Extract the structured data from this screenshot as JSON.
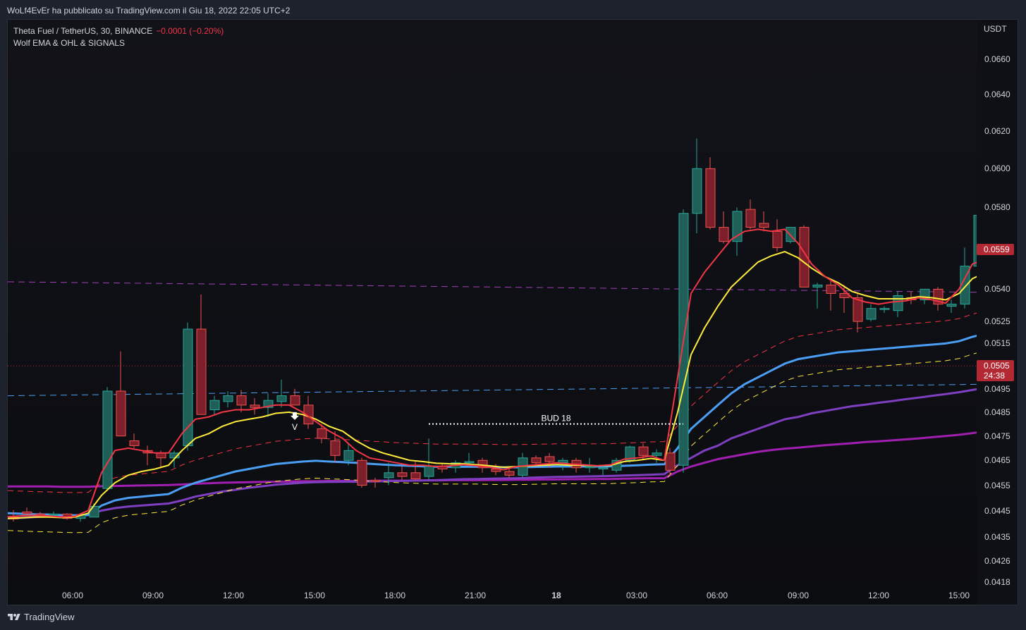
{
  "caption": "WoLf4EvEr ha pubblicato su TradingView.com il Giu 18, 2022 22:05 UTC+2",
  "legend": {
    "symbol": "Theta Fuel / TetherUS, 30, BINANCE",
    "change": "−0.0001 (−0.20%)",
    "indicator": "Wolf EMA & OHL & SIGNALS"
  },
  "axis": {
    "currency": "USDT",
    "price_ticks": [
      "0.0660",
      "0.0640",
      "0.0620",
      "0.0600",
      "0.0580",
      "0.0540",
      "0.0525",
      "0.0515",
      "0.0495",
      "0.0485",
      "0.0475",
      "0.0465",
      "0.0455",
      "0.0445",
      "0.0435",
      "0.0426",
      "0.0418"
    ],
    "last_price_tag": "0.0559",
    "current_price_tag": "0.0505",
    "countdown": "24:38",
    "time_ticks": [
      "06:00",
      "09:00",
      "12:00",
      "15:00",
      "18:00",
      "21:00",
      "18",
      "03:00",
      "06:00",
      "09:00",
      "12:00",
      "15:00"
    ]
  },
  "annotations": {
    "bud_label": "BUD 18",
    "sell_signal": "V"
  },
  "footer": {
    "brand": "TradingView"
  },
  "colors": {
    "bull": "#26a69a",
    "bear": "#ef5350",
    "ema_red": "#f23645",
    "ema_yellow": "#ffeb3b",
    "ema_blue": "#4a9ff5",
    "ema_purple": "#7e3fc0",
    "ema_magenta": "#a11fb0"
  },
  "chart_data": {
    "type": "candlestick",
    "title": "Theta Fuel / TetherUS, 30, BINANCE",
    "y_scale": "log",
    "ylim": [
      0.0415,
      0.0675
    ],
    "y_ticks": [
      0.066,
      0.064,
      0.062,
      0.06,
      0.058,
      0.054,
      0.0525,
      0.0515,
      0.0495,
      0.0485,
      0.0475,
      0.0465,
      0.0455,
      0.0445,
      0.0435,
      0.0426,
      0.0418
    ],
    "x_labels": [
      "06:00",
      "09:00",
      "12:00",
      "15:00",
      "18:00",
      "21:00",
      "18",
      "03:00",
      "06:00",
      "09:00",
      "12:00",
      "15:00"
    ],
    "candles": [
      [
        0.04425,
        0.04452,
        0.04408,
        0.04418
      ],
      [
        0.04445,
        0.04462,
        0.0443,
        0.04438
      ],
      [
        0.04437,
        0.04445,
        0.0443,
        0.04435
      ],
      [
        0.04435,
        0.04447,
        0.04424,
        0.04437
      ],
      [
        0.04437,
        0.0444,
        0.04415,
        0.0442
      ],
      [
        0.0442,
        0.04436,
        0.04407,
        0.04433
      ],
      [
        0.04425,
        0.04478,
        0.04425,
        0.04467
      ],
      [
        0.04537,
        0.04958,
        0.0453,
        0.0494
      ],
      [
        0.0494,
        0.05115,
        0.0475,
        0.0475
      ],
      [
        0.0473,
        0.0476,
        0.047,
        0.0471
      ],
      [
        0.0469,
        0.0471,
        0.0463,
        0.0468
      ],
      [
        0.0468,
        0.0469,
        0.0462,
        0.0466
      ],
      [
        0.0466,
        0.0469,
        0.0462,
        0.0468
      ],
      [
        0.0471,
        0.05245,
        0.0469,
        0.05215
      ],
      [
        0.05215,
        0.05375,
        0.0484,
        0.0484
      ],
      [
        0.0486,
        0.0492,
        0.0484,
        0.049
      ],
      [
        0.04895,
        0.0494,
        0.0487,
        0.0492
      ],
      [
        0.0492,
        0.04945,
        0.0485,
        0.0488
      ],
      [
        0.0488,
        0.0491,
        0.0484,
        0.0487
      ],
      [
        0.0487,
        0.0493,
        0.0483,
        0.049
      ],
      [
        0.04895,
        0.0499,
        0.0487,
        0.0492
      ],
      [
        0.0492,
        0.0495,
        0.0488,
        0.0488
      ],
      [
        0.0488,
        0.0492,
        0.0478,
        0.048
      ],
      [
        0.0478,
        0.048,
        0.0472,
        0.0474
      ],
      [
        0.0473,
        0.0477,
        0.0464,
        0.0467
      ],
      [
        0.0465,
        0.0472,
        0.0463,
        0.0469
      ],
      [
        0.0465,
        0.0466,
        0.0454,
        0.0455
      ],
      [
        0.0457,
        0.0458,
        0.0454,
        0.04565
      ],
      [
        0.0458,
        0.0464,
        0.0455,
        0.046
      ],
      [
        0.046,
        0.04625,
        0.0457,
        0.04585
      ],
      [
        0.046,
        0.0465,
        0.0457,
        0.04575
      ],
      [
        0.04585,
        0.0474,
        0.0457,
        0.04625
      ],
      [
        0.04625,
        0.0464,
        0.046,
        0.04615
      ],
      [
        0.0462,
        0.0465,
        0.046,
        0.0464
      ],
      [
        0.0464,
        0.0468,
        0.0462,
        0.04645
      ],
      [
        0.0465,
        0.0466,
        0.046,
        0.0462
      ],
      [
        0.04615,
        0.04635,
        0.0459,
        0.04605
      ],
      [
        0.04605,
        0.0462,
        0.0458,
        0.0459
      ],
      [
        0.0459,
        0.0468,
        0.0458,
        0.0466
      ],
      [
        0.0466,
        0.0467,
        0.0463,
        0.0464
      ],
      [
        0.04665,
        0.0468,
        0.0462,
        0.04645
      ],
      [
        0.0464,
        0.0466,
        0.0461,
        0.0465
      ],
      [
        0.0465,
        0.0466,
        0.046,
        0.0462
      ],
      [
        0.0462,
        0.0466,
        0.046,
        0.04625
      ],
      [
        0.04615,
        0.0463,
        0.0459,
        0.0462
      ],
      [
        0.0461,
        0.0466,
        0.046,
        0.0465
      ],
      [
        0.0465,
        0.0471,
        0.0464,
        0.04705
      ],
      [
        0.04705,
        0.0472,
        0.0465,
        0.0467
      ],
      [
        0.0467,
        0.04695,
        0.0464,
        0.0468
      ],
      [
        0.0468,
        0.047,
        0.0459,
        0.0461
      ],
      [
        0.0463,
        0.0579,
        0.046,
        0.0577
      ],
      [
        0.0577,
        0.0616,
        0.0567,
        0.06
      ],
      [
        0.06,
        0.0606,
        0.0569,
        0.057
      ],
      [
        0.057,
        0.0578,
        0.0562,
        0.0563
      ],
      [
        0.0563,
        0.058,
        0.0556,
        0.0578
      ],
      [
        0.0579,
        0.0584,
        0.0569,
        0.057
      ],
      [
        0.0572,
        0.0578,
        0.0568,
        0.057
      ],
      [
        0.0568,
        0.0574,
        0.0558,
        0.056
      ],
      [
        0.0563,
        0.057,
        0.0562,
        0.057
      ],
      [
        0.057,
        0.0571,
        0.0541,
        0.0541
      ],
      [
        0.0541,
        0.0543,
        0.0531,
        0.0542
      ],
      [
        0.0542,
        0.0544,
        0.053,
        0.0538
      ],
      [
        0.0538,
        0.0542,
        0.0529,
        0.0536
      ],
      [
        0.0536,
        0.0538,
        0.052,
        0.0525
      ],
      [
        0.0526,
        0.0533,
        0.0525,
        0.0531
      ],
      [
        0.0531,
        0.0532,
        0.0529,
        0.0531
      ],
      [
        0.053,
        0.0539,
        0.0527,
        0.0537
      ],
      [
        0.0536,
        0.0539,
        0.0533,
        0.0535
      ],
      [
        0.0535,
        0.054,
        0.0533,
        0.054
      ],
      [
        0.054,
        0.0541,
        0.053,
        0.0533
      ],
      [
        0.0532,
        0.0535,
        0.0529,
        0.0533
      ],
      [
        0.0533,
        0.056,
        0.0531,
        0.0551
      ],
      [
        0.0551,
        0.0579,
        0.0549,
        0.0576
      ],
      [
        0.0576,
        0.0591,
        0.055,
        0.0555
      ]
    ],
    "ema_fast": [
      0.04427,
      0.0443,
      0.04432,
      0.0443,
      0.04425,
      0.04428,
      0.0445,
      0.046,
      0.0469,
      0.047,
      0.0469,
      0.0468,
      0.0468,
      0.0476,
      0.0482,
      0.0483,
      0.0485,
      0.0486,
      0.0486,
      0.0487,
      0.0488,
      0.0488,
      0.0485,
      0.0481,
      0.0477,
      0.0474,
      0.0469,
      0.0466,
      0.0465,
      0.0464,
      0.0463,
      0.0463,
      0.04625,
      0.04628,
      0.04632,
      0.04628,
      0.04622,
      0.04612,
      0.04625,
      0.0463,
      0.04635,
      0.0464,
      0.04635,
      0.04632,
      0.04628,
      0.04632,
      0.04655,
      0.0466,
      0.04668,
      0.0465,
      0.05,
      0.0538,
      0.0548,
      0.0556,
      0.0564,
      0.0568,
      0.0569,
      0.0568,
      0.0569,
      0.0562,
      0.0552,
      0.0546,
      0.0542,
      0.0536,
      0.0534,
      0.0533,
      0.0534,
      0.05345,
      0.0536,
      0.0535,
      0.05335,
      0.054,
      0.0552,
      0.05545
    ],
    "ema_mid": [
      0.0442,
      0.04422,
      0.04425,
      0.04425,
      0.04423,
      0.04425,
      0.0444,
      0.0451,
      0.0456,
      0.0459,
      0.04605,
      0.04615,
      0.0463,
      0.0469,
      0.0474,
      0.0476,
      0.0479,
      0.0481,
      0.0482,
      0.0483,
      0.04845,
      0.0485,
      0.0484,
      0.0482,
      0.0479,
      0.0477,
      0.0473,
      0.047,
      0.0468,
      0.04665,
      0.0465,
      0.04645,
      0.04638,
      0.04636,
      0.04636,
      0.04632,
      0.04628,
      0.04622,
      0.04625,
      0.04628,
      0.0463,
      0.04633,
      0.0463,
      0.0463,
      0.04628,
      0.0463,
      0.04645,
      0.0465,
      0.04658,
      0.0465,
      0.0485,
      0.051,
      0.0522,
      0.0532,
      0.0541,
      0.0547,
      0.0553,
      0.0556,
      0.0558,
      0.0555,
      0.055,
      0.0546,
      0.0543,
      0.0539,
      0.0537,
      0.05355,
      0.05355,
      0.05355,
      0.05365,
      0.0536,
      0.0535,
      0.0538,
      0.0545,
      0.0548
    ],
    "ema_slow": [
      0.0444,
      0.04438,
      0.04436,
      0.04435,
      0.04433,
      0.04432,
      0.04433,
      0.0447,
      0.0449,
      0.045,
      0.04505,
      0.0451,
      0.04515,
      0.0454,
      0.0456,
      0.04575,
      0.0459,
      0.04605,
      0.04615,
      0.04625,
      0.04635,
      0.0464,
      0.04645,
      0.04648,
      0.04645,
      0.04643,
      0.0464,
      0.04636,
      0.04633,
      0.0463,
      0.04628,
      0.04626,
      0.04624,
      0.04624,
      0.04624,
      0.04624,
      0.04623,
      0.04622,
      0.04622,
      0.04623,
      0.04624,
      0.04625,
      0.04625,
      0.04625,
      0.04625,
      0.04626,
      0.04628,
      0.0463,
      0.04633,
      0.04634,
      0.047,
      0.0478,
      0.0483,
      0.0488,
      0.0493,
      0.0497,
      0.05,
      0.0503,
      0.0506,
      0.0508,
      0.0509,
      0.051,
      0.0511,
      0.05115,
      0.0512,
      0.05125,
      0.0513,
      0.05135,
      0.0514,
      0.05145,
      0.0515,
      0.0516,
      0.0518,
      0.05195
    ],
    "ema_long": [
      0.0442,
      0.04422,
      0.04425,
      0.04428,
      0.0443,
      0.04432,
      0.04435,
      0.0445,
      0.0446,
      0.04466,
      0.0447,
      0.04474,
      0.04478,
      0.0449,
      0.04505,
      0.04515,
      0.04525,
      0.04532,
      0.0454,
      0.04546,
      0.04552,
      0.04556,
      0.0456,
      0.04562,
      0.04563,
      0.04564,
      0.04564,
      0.04565,
      0.04566,
      0.04567,
      0.04568,
      0.04569,
      0.0457,
      0.04572,
      0.04574,
      0.04575,
      0.04576,
      0.04577,
      0.04578,
      0.0458,
      0.04582,
      0.04583,
      0.04584,
      0.04585,
      0.04586,
      0.04587,
      0.04589,
      0.0459,
      0.04592,
      0.04594,
      0.0463,
      0.0466,
      0.0469,
      0.0471,
      0.0474,
      0.0476,
      0.0478,
      0.048,
      0.0482,
      0.0483,
      0.04845,
      0.04855,
      0.04865,
      0.04875,
      0.04882,
      0.0489,
      0.04897,
      0.04905,
      0.04912,
      0.0492,
      0.04927,
      0.04935,
      0.04945,
      0.04955
    ],
    "ema_base": [
      0.04545,
      0.04545,
      0.04545,
      0.04545,
      0.04544,
      0.04544,
      0.04544,
      0.04546,
      0.04547,
      0.04548,
      0.04549,
      0.0455,
      0.04551,
      0.04553,
      0.04556,
      0.04558,
      0.0456,
      0.04561,
      0.04562,
      0.04563,
      0.04564,
      0.04565,
      0.04566,
      0.04566,
      0.04567,
      0.04567,
      0.04567,
      0.04567,
      0.04568,
      0.04568,
      0.04568,
      0.04569,
      0.04569,
      0.0457,
      0.0457,
      0.0457,
      0.04571,
      0.04571,
      0.04572,
      0.04572,
      0.04573,
      0.04573,
      0.04574,
      0.04574,
      0.04575,
      0.04575,
      0.04576,
      0.04577,
      0.04578,
      0.04578,
      0.04605,
      0.04625,
      0.0464,
      0.04655,
      0.04665,
      0.04675,
      0.04685,
      0.04692,
      0.04698,
      0.04702,
      0.04707,
      0.04712,
      0.04716,
      0.0472,
      0.04725,
      0.04728,
      0.04732,
      0.04736,
      0.0474,
      0.04745,
      0.0475,
      0.04755,
      0.04762,
      0.0477
    ],
    "ohl_lines": [
      {
        "style": "dashed",
        "color": "#a23fb5",
        "from": [
          0,
          0.05435
        ],
        "to": [
          73,
          0.05385
        ]
      },
      {
        "style": "dashed",
        "color": "#4a9ff5",
        "from": [
          0,
          0.0492
        ],
        "to": [
          73,
          0.0497
        ]
      }
    ],
    "bud_line": {
      "from_index": 31,
      "to_index": 50,
      "price": 0.048
    },
    "sell_signal_index": 21,
    "last_price": 0.0559,
    "current_price": 0.0505
  }
}
